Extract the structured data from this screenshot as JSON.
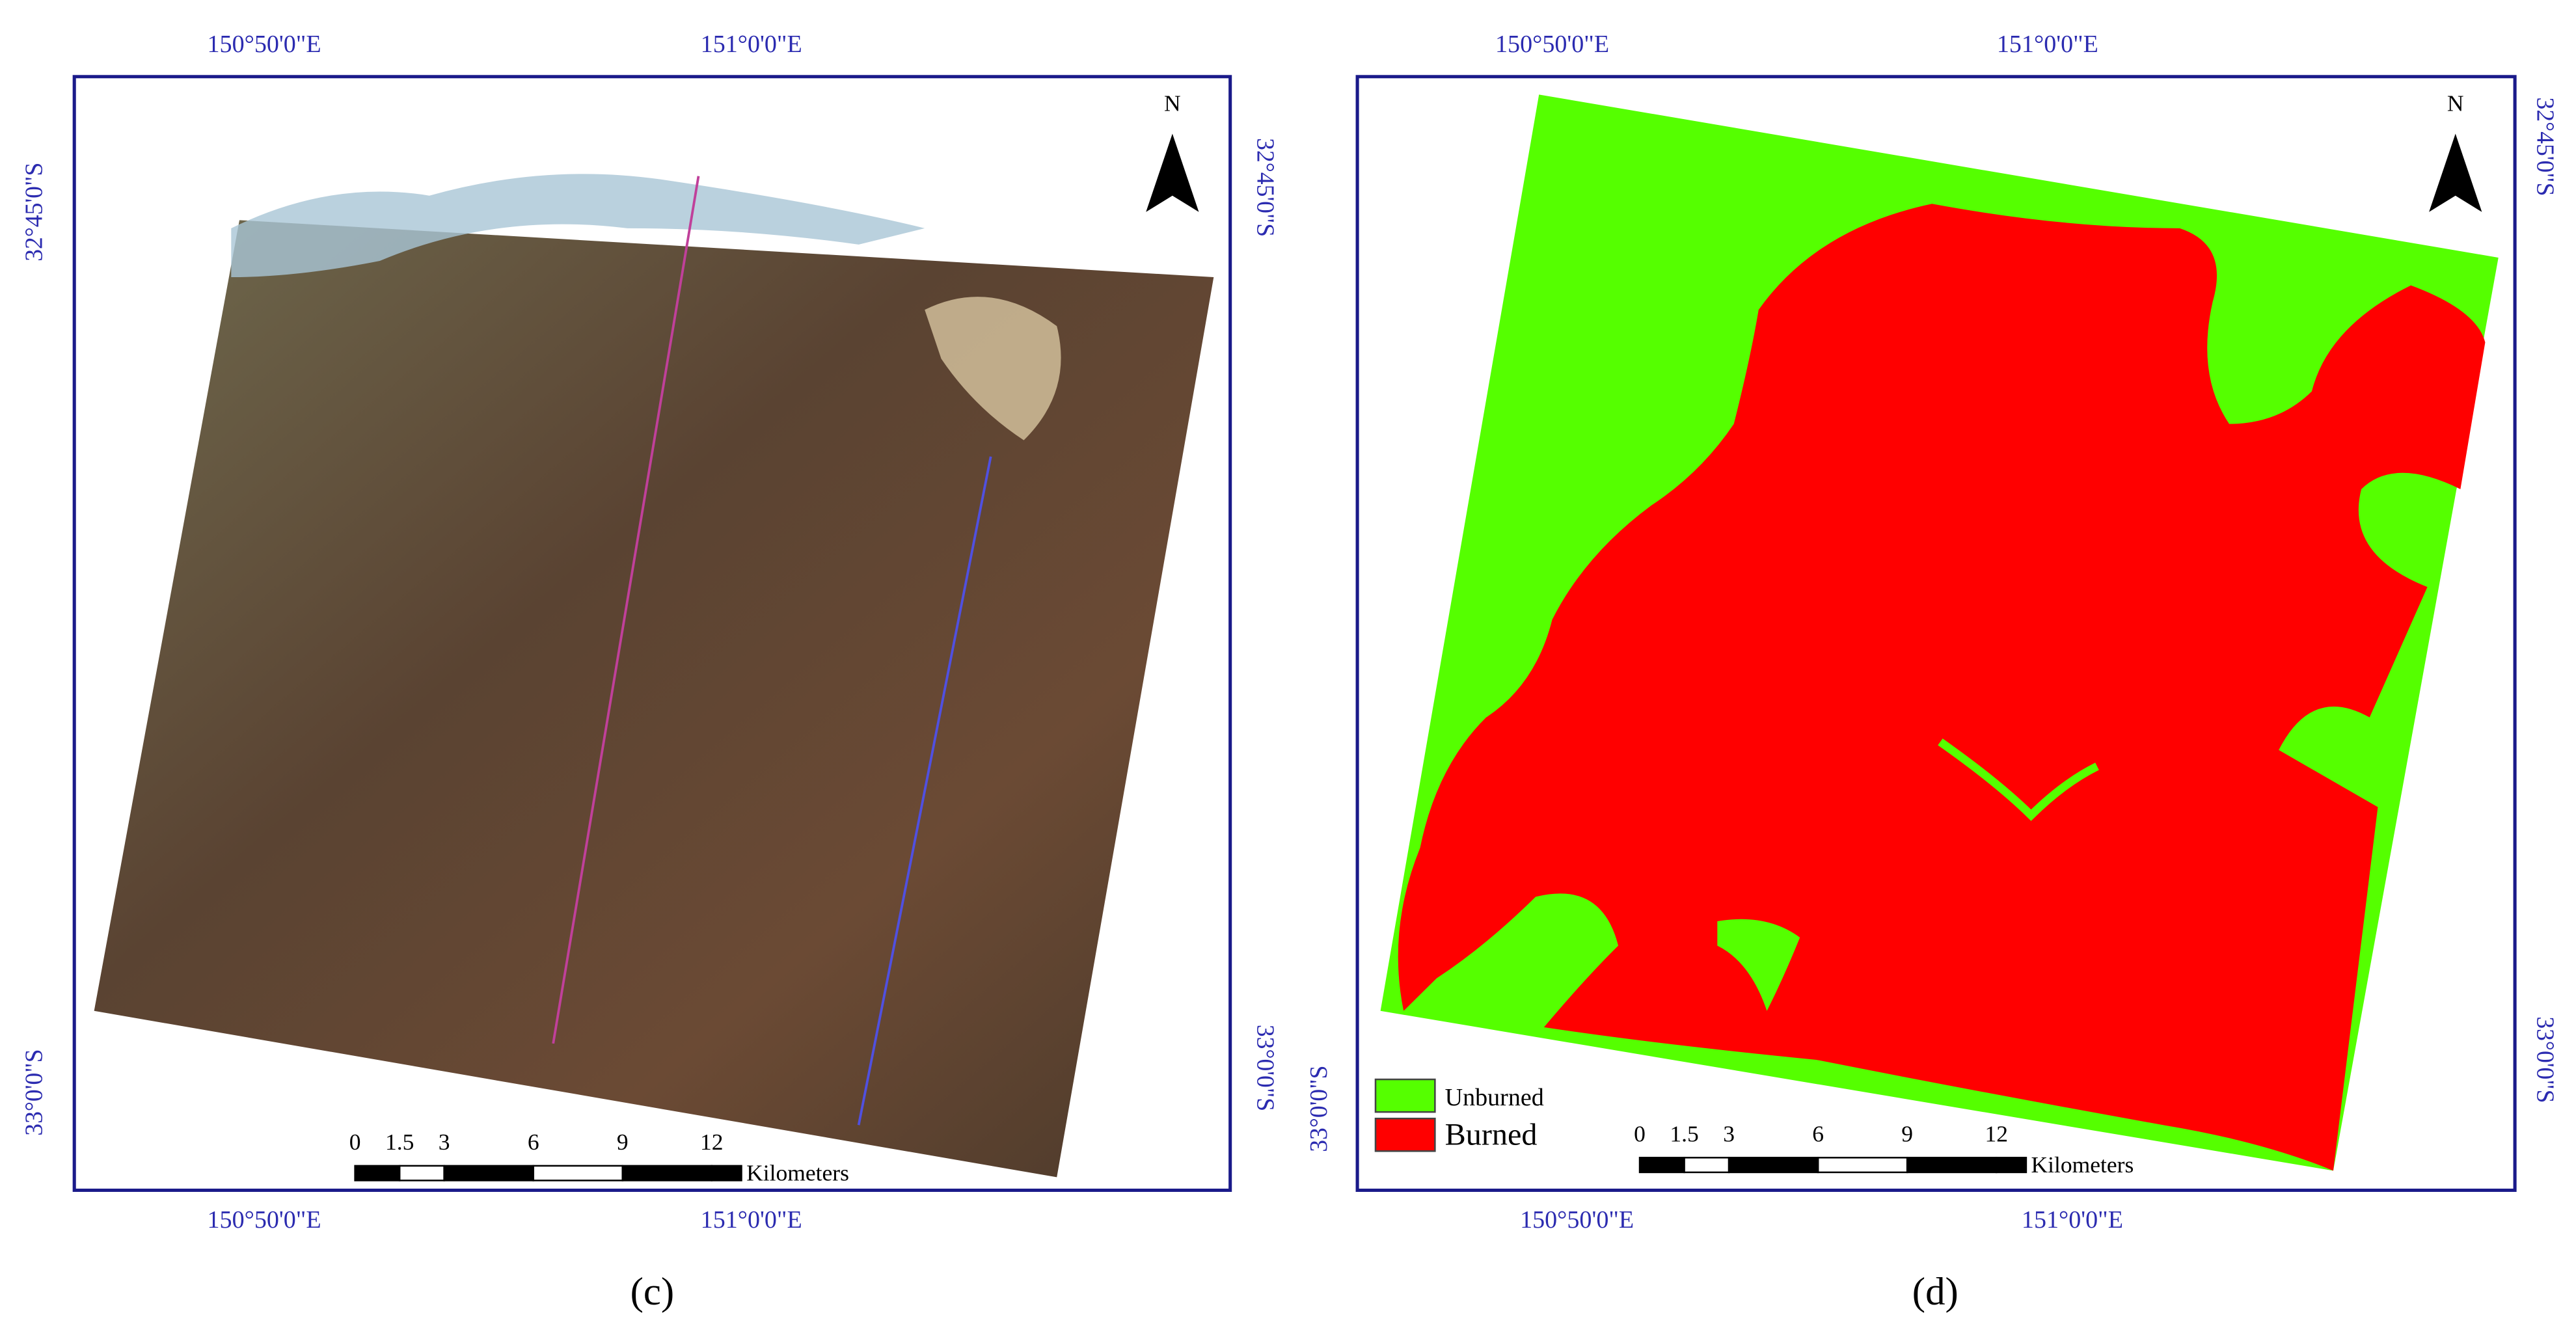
{
  "panels": [
    {
      "caption": "(c)",
      "top_labels": [
        "150°50'0\"E",
        "151°0'0\"E"
      ],
      "bottom_labels": [
        "150°50'0\"E",
        "151°0'0\"E"
      ],
      "left_labels": [
        "32°45'0\"S",
        "33°0'0\"S"
      ],
      "right_labels": [
        "32°45'0\"S",
        "33°0'0\"S"
      ],
      "north": "N",
      "scale_bar": {
        "ticks": [
          "0",
          "1.5",
          "3",
          "6",
          "9",
          "12"
        ],
        "unit": "Kilometers"
      }
    },
    {
      "caption": "(d)",
      "top_labels": [
        "150°50'0\"E",
        "151°0'0\"E"
      ],
      "bottom_labels": [
        "150°50'0\"E",
        "151°0'0\"E"
      ],
      "left_labels": [
        "33°0'0\"S"
      ],
      "right_labels": [
        "32°45'0\"S",
        "33°0'0\"S"
      ],
      "north": "N",
      "scale_bar": {
        "ticks": [
          "0",
          "1.5",
          "3",
          "6",
          "9",
          "12"
        ],
        "unit": "Kilometers"
      },
      "legend": [
        {
          "label": "Unburned",
          "color": "#55ff00"
        },
        {
          "label": "Burned",
          "color": "#ff0000"
        }
      ]
    }
  ]
}
